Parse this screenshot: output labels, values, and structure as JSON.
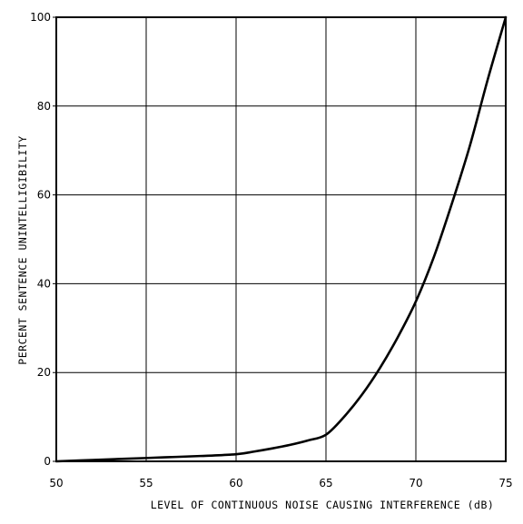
{
  "chart_data": {
    "type": "line",
    "title": "",
    "xlabel": "LEVEL OF CONTINUOUS NOISE CAUSING INTERFERENCE (dB)",
    "ylabel": "PERCENT SENTENCE UNINTELLIGIBILITY",
    "xlim": [
      50,
      75
    ],
    "ylim": [
      0,
      100
    ],
    "xticks": [
      50,
      55,
      60,
      65,
      70,
      75
    ],
    "yticks": [
      0,
      20,
      40,
      60,
      80,
      100
    ],
    "grid": true,
    "series": [
      {
        "x": [
          50,
          52,
          54,
          56,
          58,
          60,
          61,
          62,
          63,
          64,
          65,
          66,
          67,
          68,
          69,
          70,
          71,
          72,
          73,
          74,
          75
        ],
        "y": [
          0,
          0.3,
          0.6,
          0.9,
          1.2,
          1.6,
          2.2,
          2.9,
          3.7,
          4.7,
          6,
          10,
          15,
          21,
          28,
          36,
          46,
          58,
          71,
          86,
          100
        ]
      }
    ]
  }
}
